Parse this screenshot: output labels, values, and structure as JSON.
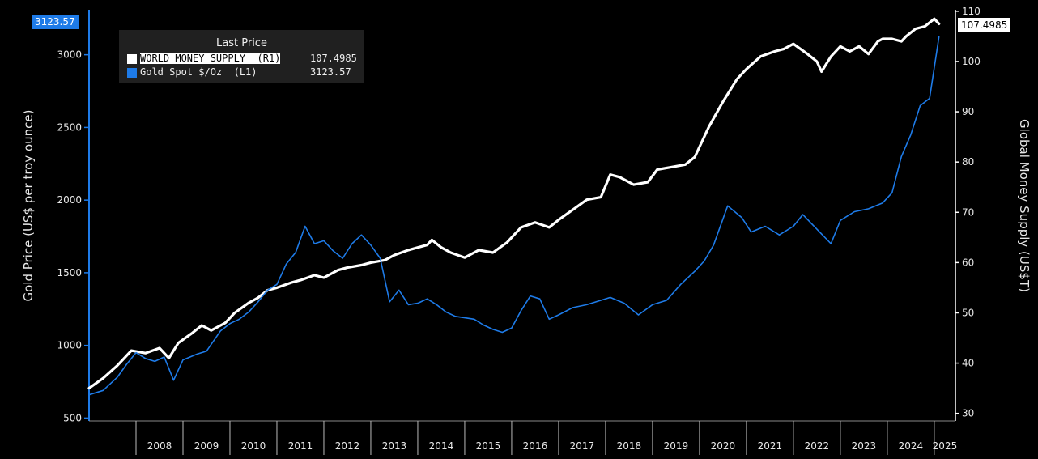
{
  "chart_data": {
    "type": "line",
    "legend": {
      "header": "Last Price",
      "placement": "top-left",
      "entries": [
        {
          "label": "WORLD MONEY SUPPLY  (R1)",
          "value": "107.4985",
          "color": "#ffffff"
        },
        {
          "label": "Gold Spot $/Oz  (L1)",
          "value": "3123.57",
          "color": "#1e7be8"
        }
      ]
    },
    "left_axis": {
      "label": "Gold Price (US$ per troy ounce)",
      "ticks": [
        500,
        1000,
        1500,
        2000,
        2500,
        3000
      ],
      "range": [
        480,
        3310
      ],
      "last_value_tag": "3123.57"
    },
    "right_axis": {
      "label": "Global Money Supply (US$T)",
      "ticks": [
        30,
        40,
        50,
        60,
        70,
        80,
        90,
        100,
        110
      ],
      "range": [
        28.5,
        110.3
      ],
      "last_value_tag": "107.4985"
    },
    "x_axis": {
      "year_labels": [
        "2008",
        "2009",
        "2010",
        "2011",
        "2012",
        "2013",
        "2014",
        "2015",
        "2016",
        "2017",
        "2018",
        "2019",
        "2020",
        "2021",
        "2022",
        "2023",
        "2024",
        "2025"
      ],
      "range": [
        2007.0,
        2025.45
      ]
    },
    "grid": false,
    "series": [
      {
        "name": "WORLD MONEY SUPPLY  (R1)",
        "axis": "right",
        "color": "#ffffff",
        "x": [
          2007.0,
          2007.3,
          2007.6,
          2007.9,
          2008.2,
          2008.5,
          2008.7,
          2008.9,
          2009.2,
          2009.4,
          2009.6,
          2009.9,
          2010.1,
          2010.4,
          2010.6,
          2010.8,
          2011.0,
          2011.3,
          2011.5,
          2011.8,
          2012.0,
          2012.3,
          2012.5,
          2012.8,
          2013.0,
          2013.3,
          2013.5,
          2013.8,
          2014.0,
          2014.2,
          2014.3,
          2014.5,
          2014.7,
          2015.0,
          2015.3,
          2015.6,
          2015.9,
          2016.2,
          2016.5,
          2016.8,
          2017.0,
          2017.3,
          2017.6,
          2017.9,
          2018.1,
          2018.3,
          2018.6,
          2018.9,
          2019.1,
          2019.4,
          2019.7,
          2019.9,
          2020.0,
          2020.2,
          2020.5,
          2020.8,
          2021.0,
          2021.3,
          2021.6,
          2021.8,
          2022.0,
          2022.3,
          2022.5,
          2022.6,
          2022.8,
          2023.0,
          2023.2,
          2023.4,
          2023.6,
          2023.8,
          2023.9,
          2024.1,
          2024.3,
          2024.4,
          2024.6,
          2024.8,
          2025.0,
          2025.1
        ],
        "y": [
          35.0,
          37.0,
          39.5,
          42.5,
          42.0,
          43.0,
          41.0,
          44.0,
          46.0,
          47.5,
          46.5,
          48.0,
          50.0,
          52.0,
          53.0,
          54.5,
          55.0,
          56.0,
          56.5,
          57.5,
          57.0,
          58.5,
          59.0,
          59.5,
          60.0,
          60.5,
          61.5,
          62.5,
          63.0,
          63.5,
          64.5,
          63.0,
          62.0,
          61.0,
          62.5,
          62.0,
          64.0,
          67.0,
          68.0,
          67.0,
          68.5,
          70.5,
          72.5,
          73.0,
          77.5,
          77.0,
          75.5,
          76.0,
          78.5,
          79.0,
          79.5,
          81.0,
          83.0,
          87.0,
          92.0,
          96.5,
          98.5,
          101.0,
          102.0,
          102.5,
          103.5,
          101.5,
          100.0,
          98.0,
          101.0,
          103.0,
          102.0,
          103.0,
          101.5,
          104.0,
          104.5,
          104.5,
          104.0,
          105.0,
          106.5,
          107.0,
          108.5,
          107.5
        ]
      },
      {
        "name": "Gold Spot $/Oz  (L1)",
        "axis": "left",
        "color": "#1e7be8",
        "x": [
          2007.0,
          2007.3,
          2007.6,
          2007.8,
          2008.0,
          2008.2,
          2008.4,
          2008.6,
          2008.8,
          2009.0,
          2009.3,
          2009.5,
          2009.8,
          2010.0,
          2010.2,
          2010.4,
          2010.6,
          2010.8,
          2011.0,
          2011.2,
          2011.4,
          2011.6,
          2011.8,
          2012.0,
          2012.2,
          2012.4,
          2012.6,
          2012.8,
          2013.0,
          2013.2,
          2013.4,
          2013.6,
          2013.8,
          2014.0,
          2014.2,
          2014.4,
          2014.6,
          2014.8,
          2015.0,
          2015.2,
          2015.4,
          2015.6,
          2015.8,
          2016.0,
          2016.2,
          2016.4,
          2016.6,
          2016.8,
          2017.0,
          2017.3,
          2017.6,
          2017.9,
          2018.1,
          2018.4,
          2018.7,
          2019.0,
          2019.3,
          2019.6,
          2019.9,
          2020.1,
          2020.3,
          2020.6,
          2020.9,
          2021.1,
          2021.4,
          2021.7,
          2022.0,
          2022.2,
          2022.5,
          2022.8,
          2023.0,
          2023.3,
          2023.6,
          2023.9,
          2024.1,
          2024.3,
          2024.5,
          2024.7,
          2024.9,
          2025.1
        ],
        "y": [
          660,
          690,
          780,
          870,
          950,
          910,
          890,
          920,
          760,
          900,
          940,
          960,
          1100,
          1150,
          1180,
          1230,
          1300,
          1380,
          1420,
          1560,
          1640,
          1820,
          1700,
          1720,
          1650,
          1600,
          1700,
          1760,
          1690,
          1600,
          1300,
          1380,
          1280,
          1290,
          1320,
          1280,
          1230,
          1200,
          1190,
          1180,
          1140,
          1110,
          1090,
          1120,
          1240,
          1340,
          1320,
          1180,
          1210,
          1260,
          1280,
          1310,
          1330,
          1290,
          1210,
          1280,
          1310,
          1420,
          1510,
          1580,
          1690,
          1960,
          1880,
          1780,
          1820,
          1760,
          1820,
          1900,
          1800,
          1700,
          1860,
          1920,
          1940,
          1980,
          2050,
          2300,
          2450,
          2650,
          2700,
          3123.57
        ]
      }
    ]
  }
}
